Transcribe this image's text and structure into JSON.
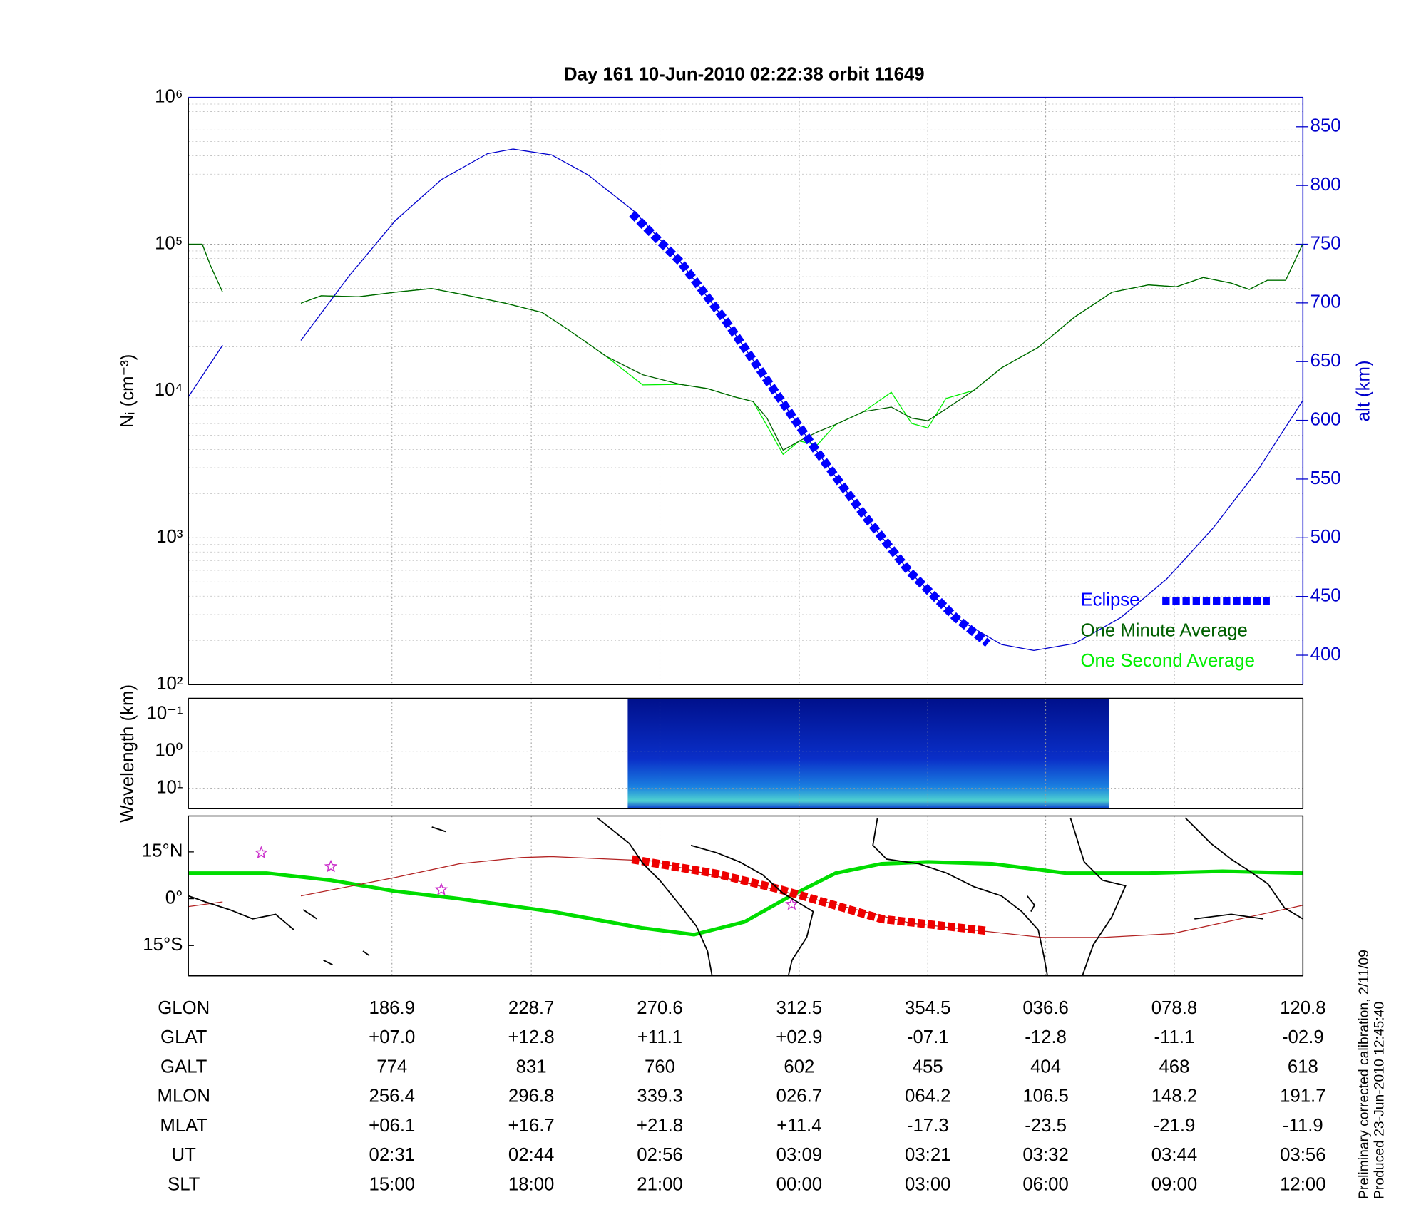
{
  "chart_data": [
    {
      "type": "line",
      "title": "Day 161  10-Jun-2010 02:22:38   orbit 11649",
      "ylabel": "Nᵢ (cm⁻³)",
      "y2label": "alt (km)",
      "ylog": true,
      "grid": true,
      "legend": "lower right",
      "xlim": [
        132,
        236
      ],
      "xticks": [
        151,
        164,
        176,
        189,
        201,
        212,
        224,
        236
      ],
      "ylim": [
        100,
        1000000
      ],
      "yticks": [
        {
          "value": 100,
          "label": "10²"
        },
        {
          "value": 1000,
          "label": "10³"
        },
        {
          "value": 10000,
          "label": "10⁴"
        },
        {
          "value": 100000,
          "label": "10⁵"
        },
        {
          "value": 1000000,
          "label": "10⁶"
        }
      ],
      "yminorticks": [
        200,
        300,
        400,
        500,
        600,
        700,
        800,
        900,
        2000,
        3000,
        4000,
        5000,
        6000,
        7000,
        8000,
        9000,
        20000,
        30000,
        40000,
        50000,
        60000,
        70000,
        80000,
        90000,
        200000,
        300000,
        400000,
        500000,
        600000,
        700000,
        800000,
        900000
      ],
      "y2lim": [
        375,
        875
      ],
      "y2ticks": [
        400,
        450,
        500,
        550,
        600,
        650,
        700,
        750,
        800,
        850
      ],
      "series": [
        {
          "name": "One Second Average",
          "color": "#00ee00",
          "style": "thin",
          "x": [
            132.0,
            133.3,
            134.1,
            135.2,
            139.0,
            142.5,
            144.4,
            147.9,
            151.3,
            154.7,
            158.2,
            161.6,
            165.0,
            167.6,
            171.0,
            174.4,
            177.9,
            180.4,
            183.0,
            184.7,
            186.0,
            187.5,
            189.0,
            190.7,
            192.4,
            195.0,
            197.6,
            199.5,
            201.0,
            202.7,
            205.3,
            207.9,
            211.3,
            214.7,
            218.2,
            221.6,
            224.2,
            226.7,
            229.3,
            231.0,
            232.7,
            234.4,
            236.0
          ],
          "values": [
            100000,
            100000,
            70500,
            47100,
            null,
            39600,
            44500,
            43800,
            47100,
            49900,
            44500,
            39600,
            34300,
            25700,
            17200,
            11000,
            11100,
            10400,
            9100,
            8470,
            5800,
            3700,
            4560,
            4300,
            5910,
            7230,
            9800,
            6000,
            5600,
            8900,
            10100,
            14400,
            19800,
            31900,
            47100,
            52800,
            51300,
            59300,
            54300,
            49200,
            56800,
            56800,
            101000
          ]
        },
        {
          "name": "One Minute Average",
          "color": "#006000",
          "style": "thin",
          "x": [
            132.0,
            133.3,
            134.1,
            135.2,
            139.0,
            142.5,
            144.4,
            147.9,
            151.3,
            154.7,
            158.2,
            161.6,
            165.0,
            167.6,
            171.0,
            174.4,
            177.9,
            180.4,
            183.0,
            184.7,
            186.0,
            187.5,
            189.0,
            190.7,
            192.4,
            195.0,
            197.6,
            199.5,
            201.0,
            202.7,
            205.3,
            207.9,
            211.3,
            214.7,
            218.2,
            221.6,
            224.2,
            226.7,
            229.3,
            231.0,
            232.7,
            234.4,
            236.0
          ],
          "values": [
            100000,
            100000,
            70500,
            47100,
            null,
            39600,
            44500,
            43800,
            47100,
            49900,
            44500,
            39600,
            34300,
            25700,
            17200,
            12900,
            11100,
            10400,
            9100,
            8470,
            6530,
            3950,
            4560,
            5260,
            5910,
            7230,
            7770,
            6530,
            6270,
            7550,
            10100,
            14400,
            19800,
            31900,
            47100,
            52800,
            51300,
            59300,
            54300,
            49200,
            56800,
            56800,
            101000
          ]
        },
        {
          "color": "#0000cc",
          "style": "thin",
          "axis": "y2",
          "x": [
            132.0,
            135.2,
            139.0,
            142.5,
            147.0,
            151.3,
            155.6,
            159.9,
            162.3,
            165.9,
            169.3,
            173.6,
            177.9,
            182.2,
            186.4,
            190.7,
            195.0,
            199.3,
            203.6,
            207.9,
            210.9,
            214.7,
            219.0,
            223.3,
            227.6,
            231.9,
            236.0
          ],
          "values": [
            620,
            664,
            null,
            668,
            723,
            770,
            805,
            827,
            831,
            826,
            809,
            778,
            735,
            684,
            629,
            573,
            520,
            471,
            432,
            409,
            404,
            410,
            432,
            465,
            508,
            559,
            617
          ]
        },
        {
          "name": "Eclipse",
          "color": "#0000ff",
          "style": "thick-dashed",
          "axis": "y2",
          "x": [
            173.4,
            177.9,
            182.2,
            186.4,
            190.7,
            195.0,
            199.3,
            203.6,
            206.6
          ],
          "values": [
            776,
            735,
            684,
            629,
            573,
            520,
            471,
            432,
            410
          ]
        }
      ]
    },
    {
      "type": "spectrogram",
      "ylabel": "Wavelength (km)",
      "ylog": true,
      "grid": true,
      "xlim": [
        132,
        236
      ],
      "xticks": [
        151,
        164,
        176,
        189,
        201,
        212,
        224,
        236
      ],
      "ylim": [
        35,
        0.038
      ],
      "yticks": [
        {
          "value": 0.1,
          "label": "10⁻¹"
        },
        {
          "value": 1,
          "label": "10⁰"
        },
        {
          "value": 10,
          "label": "10¹"
        }
      ],
      "extent_x": [
        173.0,
        217.9
      ]
    },
    {
      "type": "map",
      "xlim": [
        132,
        236
      ],
      "xticks": [
        151,
        164,
        176,
        189,
        201,
        212,
        224,
        236
      ],
      "ylim": [
        -24.7,
        26.5
      ],
      "yticks": [
        {
          "value": 15,
          "label": "15°N"
        },
        {
          "value": 0,
          "label": "0°"
        },
        {
          "value": -15,
          "label": "15°S"
        }
      ],
      "series": [
        {
          "color": "#00dd00",
          "style": "thick",
          "x": [
            132.0,
            139.3,
            145.3,
            151.3,
            157.3,
            165.9,
            174.4,
            179.2,
            183.9,
            188.2,
            192.4,
            196.7,
            201.0,
            207.0,
            213.9,
            221.6,
            228.5,
            236.0
          ],
          "values": [
            8.2,
            8.2,
            5.9,
            2.4,
            0,
            -4.1,
            -9.4,
            -11.5,
            -7.4,
            0.9,
            8.2,
            11.2,
            11.8,
            11.2,
            8.2,
            8.2,
            8.8,
            8.2
          ]
        },
        {
          "color": "#b22222",
          "style": "thin",
          "x": [
            132.0,
            135.2,
            139.0,
            142.5,
            151.3,
            157.3,
            163.1,
            165.9,
            175.2,
            187.4,
            199.5,
            211.7,
            217.3,
            223.8,
            236.0
          ],
          "values": [
            -2.5,
            -1.0,
            null,
            0.9,
            6.8,
            11.2,
            13.2,
            13.5,
            12.1,
            2.4,
            -7.9,
            -12.4,
            -12.4,
            -11.2,
            -2.1
          ]
        },
        {
          "color": "#ee0000",
          "style": "thick-dashed",
          "x": [
            173.4,
            181.3,
            187.3,
            196.7,
            206.6
          ],
          "values": [
            12.6,
            8.0,
            2.9,
            -6.5,
            -10.3
          ]
        },
        {
          "color": "#cc33cc",
          "marker": "star",
          "x": [
            138.8,
            145.3,
            155.6,
            188.3
          ],
          "values": [
            14.7,
            10.3,
            2.9,
            -1.8
          ]
        }
      ]
    }
  ],
  "ephemeris": {
    "rows": [
      {
        "label": "GLON",
        "cells": [
          "186.9",
          "228.7",
          "270.6",
          "312.5",
          "354.5",
          "036.6",
          "078.8",
          "120.8"
        ]
      },
      {
        "label": "GLAT",
        "cells": [
          "+07.0",
          "+12.8",
          "+11.1",
          "+02.9",
          "-07.1",
          "-12.8",
          "-11.1",
          "-02.9"
        ]
      },
      {
        "label": "GALT",
        "cells": [
          "774",
          "831",
          "760",
          "602",
          "455",
          "404",
          "468",
          "618"
        ]
      },
      {
        "label": "MLON",
        "cells": [
          "256.4",
          "296.8",
          "339.3",
          "026.7",
          "064.2",
          "106.5",
          "148.2",
          "191.7"
        ]
      },
      {
        "label": "MLAT",
        "cells": [
          "+06.1",
          "+16.7",
          "+21.8",
          "+11.4",
          "-17.3",
          "-23.5",
          "-21.9",
          "-11.9"
        ]
      },
      {
        "label": "UT",
        "cells": [
          "02:31",
          "02:44",
          "02:56",
          "03:09",
          "03:21",
          "03:32",
          "03:44",
          "03:56"
        ]
      },
      {
        "label": "SLT",
        "cells": [
          "15:00",
          "18:00",
          "21:00",
          "00:00",
          "03:00",
          "06:00",
          "09:00",
          "12:00"
        ]
      }
    ]
  },
  "footer": [
    "Preliminary corrected calibration, 2/11/09",
    "Produced 23-Jun-2010 12:45:40"
  ]
}
